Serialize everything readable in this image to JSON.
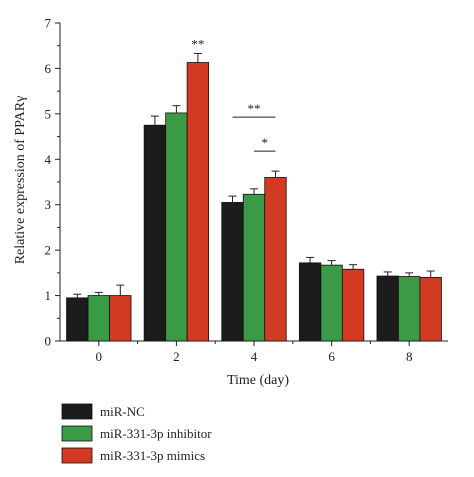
{
  "chart_data": {
    "type": "bar",
    "title": "",
    "xlabel": "Time (day)",
    "ylabel": "Relative expression of PPARγ",
    "categories": [
      "0",
      "2",
      "4",
      "6",
      "8"
    ],
    "ylim": [
      0,
      7
    ],
    "yticks": [
      "0",
      "1",
      "2",
      "3",
      "4",
      "5",
      "6",
      "7"
    ],
    "grid": false,
    "legend_position": "bottom-left",
    "series": [
      {
        "name": "miR-NC",
        "color": "#1c1c1c",
        "values": [
          0.95,
          4.75,
          3.05,
          1.72,
          1.43
        ],
        "errors": [
          0.08,
          0.2,
          0.14,
          0.12,
          0.09
        ]
      },
      {
        "name": "miR-331-3p inhibitor",
        "color": "#3a9a45",
        "values": [
          1.0,
          5.02,
          3.23,
          1.67,
          1.42
        ],
        "errors": [
          0.07,
          0.16,
          0.12,
          0.1,
          0.08
        ]
      },
      {
        "name": "miR-331-3p mimics",
        "color": "#d33a22",
        "values": [
          1.0,
          6.13,
          3.6,
          1.58,
          1.4
        ],
        "errors": [
          0.23,
          0.2,
          0.14,
          0.1,
          0.14
        ]
      }
    ],
    "annotations": [
      {
        "text": "**",
        "category": "2",
        "series": "miR-331-3p mimics"
      },
      {
        "text": "**",
        "category": "4",
        "bracket": [
          "miR-NC",
          "miR-331-3p mimics"
        ]
      },
      {
        "text": "*",
        "category": "4",
        "bracket": [
          "miR-331-3p inhibitor",
          "miR-331-3p mimics"
        ]
      }
    ]
  }
}
